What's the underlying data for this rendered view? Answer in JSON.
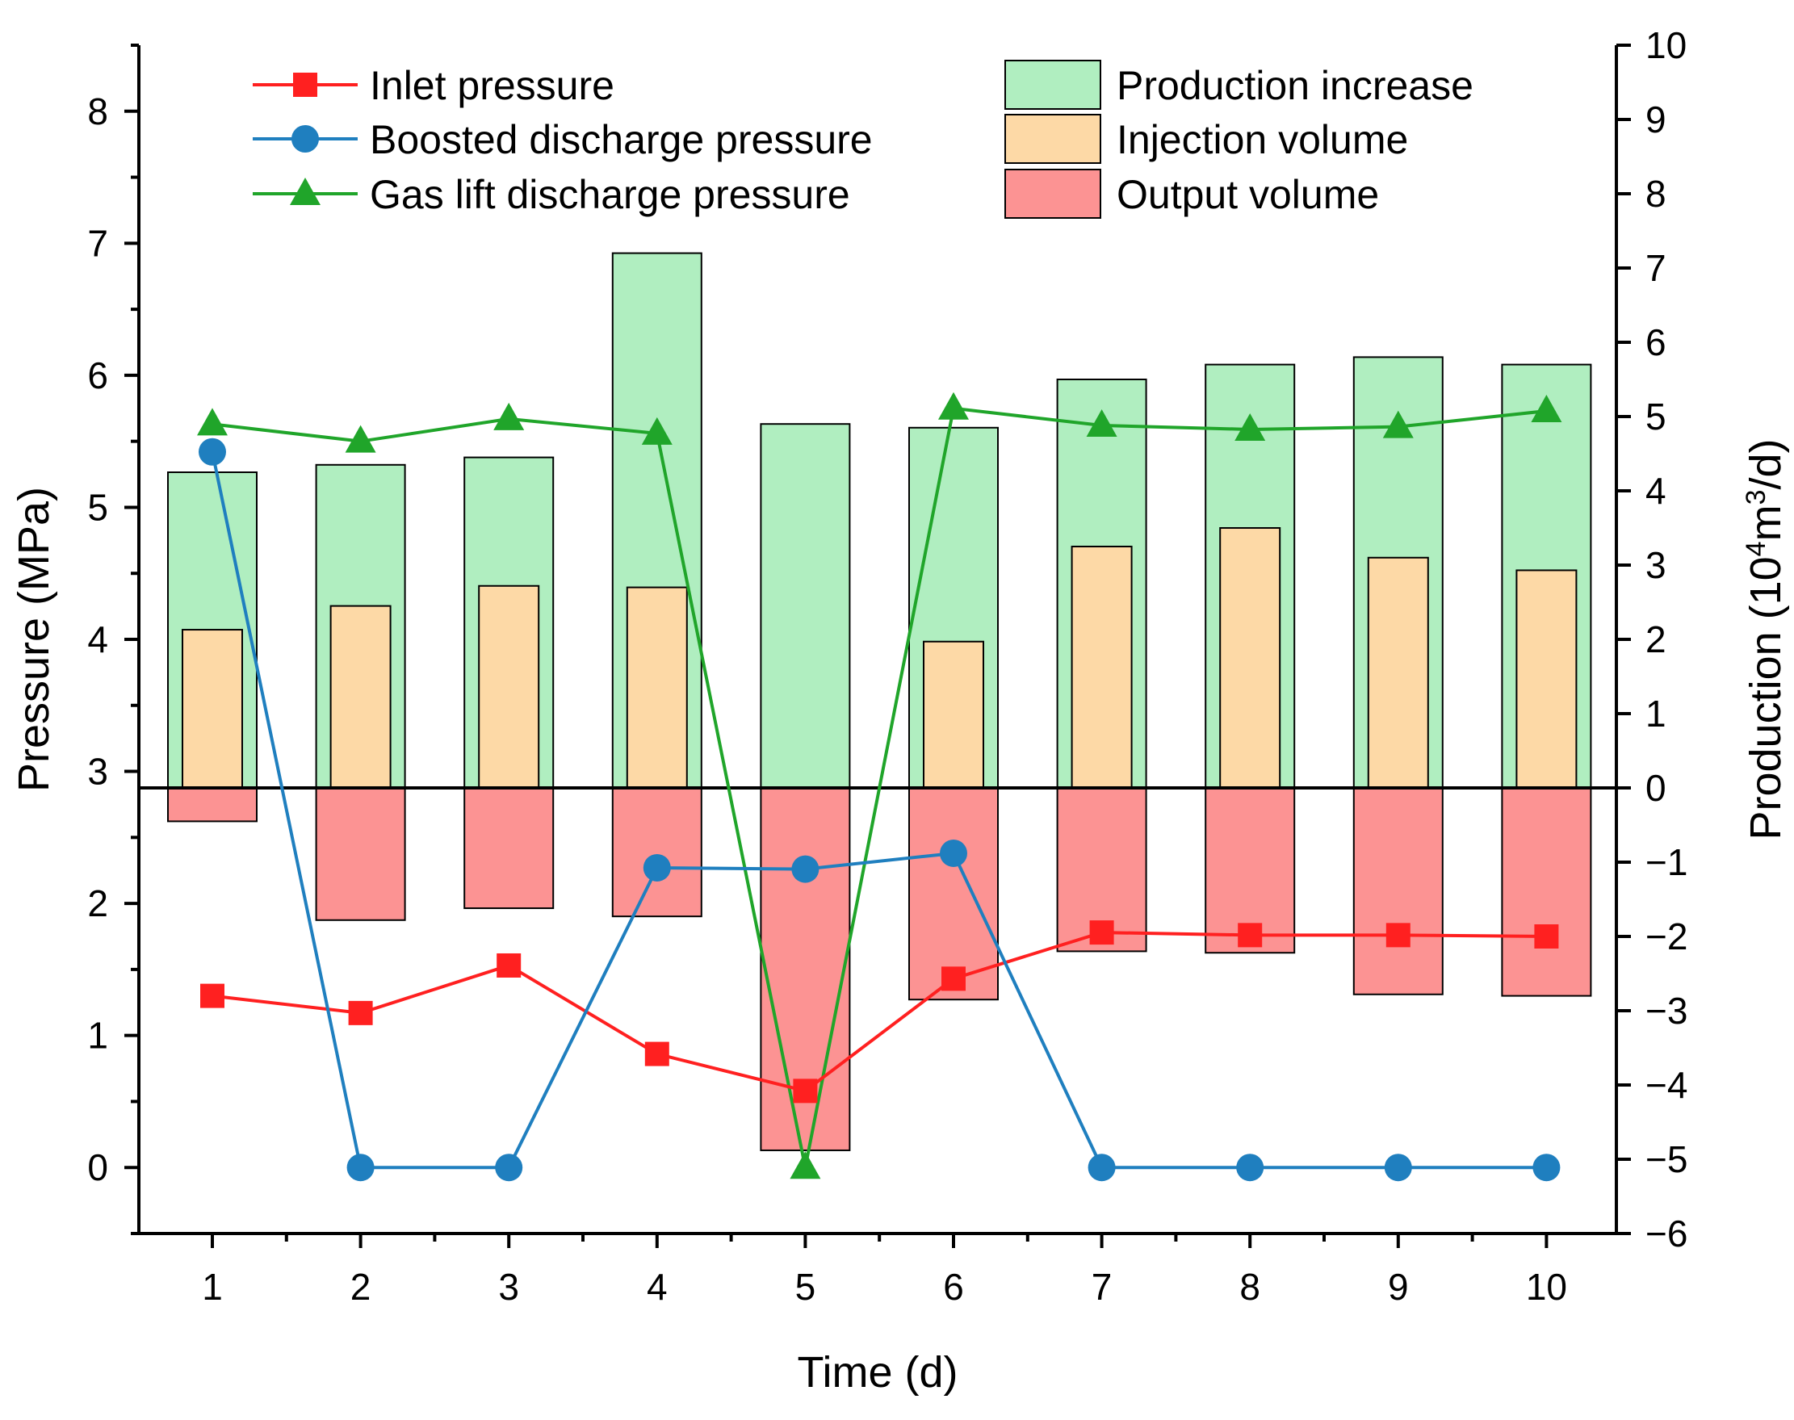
{
  "chart_data": {
    "type": "bar+line",
    "x": [
      1,
      2,
      3,
      4,
      5,
      6,
      7,
      8,
      9,
      10
    ],
    "xlabel": "Time (d)",
    "ylabel_left": "Pressure (MPa)",
    "ylabel_right": "Production (10",
    "ylabel_right_sup": "4",
    "ylabel_right_mid": "m",
    "ylabel_right_sup2": "3",
    "ylabel_right_end": "/d)",
    "y_left_range": [
      -0.5,
      8.5
    ],
    "y_left_ticks": [
      0,
      1,
      2,
      3,
      4,
      5,
      6,
      7,
      8
    ],
    "y_right_range": [
      -6,
      10
    ],
    "y_right_ticks": [
      -6,
      -5,
      -4,
      -3,
      -2,
      -1,
      0,
      1,
      2,
      3,
      4,
      5,
      6,
      7,
      8,
      9,
      10
    ],
    "y_right_tick_labels": [
      "−6",
      "−5",
      "−4",
      "−3",
      "−2",
      "−1",
      "0",
      "1",
      "2",
      "3",
      "4",
      "5",
      "6",
      "7",
      "8",
      "9",
      "10"
    ],
    "bar_series": [
      {
        "name": "Production increase",
        "axis": "right",
        "color": "#b0eec0",
        "values": [
          4.25,
          4.35,
          4.45,
          7.2,
          4.9,
          4.85,
          5.5,
          5.7,
          5.8,
          5.7
        ]
      },
      {
        "name": "Injection volume",
        "axis": "right",
        "color": "#fdd9a6",
        "values": [
          2.13,
          2.45,
          2.72,
          2.7,
          0,
          1.97,
          3.25,
          3.5,
          3.1,
          2.93
        ]
      },
      {
        "name": "Output volume",
        "axis": "right",
        "color": "#fc9393",
        "values": [
          -0.45,
          -1.78,
          -1.62,
          -1.73,
          -4.88,
          -2.85,
          -2.2,
          -2.22,
          -2.78,
          -2.8
        ]
      }
    ],
    "line_series": [
      {
        "name": "Inlet pressure",
        "axis": "left",
        "color": "#ff2020",
        "marker": "square",
        "values": [
          1.3,
          1.17,
          1.53,
          0.86,
          0.58,
          1.43,
          1.78,
          1.76,
          1.76,
          1.75
        ]
      },
      {
        "name": "Boosted discharge pressure",
        "axis": "left",
        "color": "#1f7fbf",
        "marker": "circle",
        "values": [
          5.42,
          0,
          0,
          2.27,
          2.26,
          2.38,
          0,
          0,
          0,
          0
        ]
      },
      {
        "name": "Gas lift discharge pressure",
        "axis": "left",
        "color": "#20a52a",
        "marker": "triangle",
        "values": [
          5.63,
          5.5,
          5.67,
          5.56,
          0,
          5.75,
          5.62,
          5.59,
          5.61,
          5.73
        ]
      }
    ],
    "legend": {
      "lines": [
        "Inlet pressure",
        "Boosted discharge pressure",
        "Gas lift discharge pressure"
      ],
      "bars": [
        "Production increase",
        "Injection volume",
        "Output volume"
      ],
      "placement": "top"
    },
    "colors": {
      "zero_line": "#000000",
      "bar_edge": "#000000"
    }
  }
}
